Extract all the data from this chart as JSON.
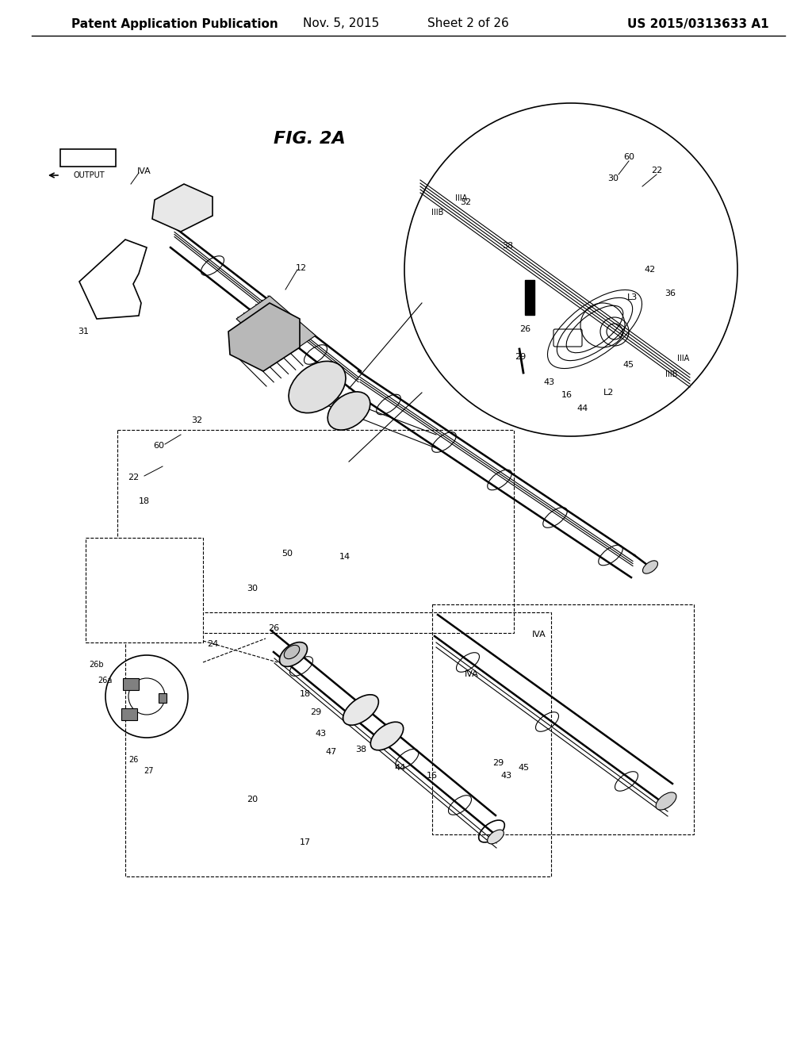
{
  "title_line1": "Patent Application Publication",
  "title_date": "Nov. 5, 2015",
  "title_sheet": "Sheet 2 of 26",
  "title_patent": "US 2015/0313633 A1",
  "fig_label": "FIG. 2A",
  "background_color": "#ffffff",
  "line_color": "#000000",
  "header_fontsize": 11,
  "label_fontsize": 9,
  "fig_fontsize": 16
}
